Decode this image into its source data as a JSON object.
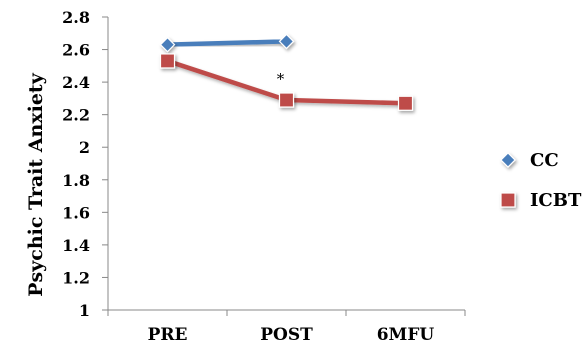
{
  "chart_data": {
    "type": "line",
    "categories": [
      "PRE",
      "POST",
      "6MFU"
    ],
    "series": [
      {
        "name": "CC",
        "values": [
          2.63,
          2.65,
          null
        ],
        "color": "#4a7ebb",
        "marker": "diamond"
      },
      {
        "name": "ICBT",
        "values": [
          2.53,
          2.29,
          2.27
        ],
        "color": "#be4b48",
        "marker": "square"
      }
    ],
    "title": "",
    "xlabel": "",
    "ylabel": "Psychic Trait Anxiety",
    "ylim": [
      1,
      2.8
    ],
    "yticks": [
      1,
      1.2,
      1.4,
      1.6,
      1.8,
      2,
      2.2,
      2.4,
      2.6,
      2.8
    ],
    "ytick_labels": [
      "1",
      "1.2",
      "1.4",
      "1.6",
      "1.8",
      "2",
      "2.2",
      "2.4",
      "2.6",
      "2.8"
    ],
    "annotations": [
      {
        "text": "*",
        "category": "POST",
        "y": 2.42
      }
    ],
    "grid": false,
    "legend_position": "right"
  }
}
